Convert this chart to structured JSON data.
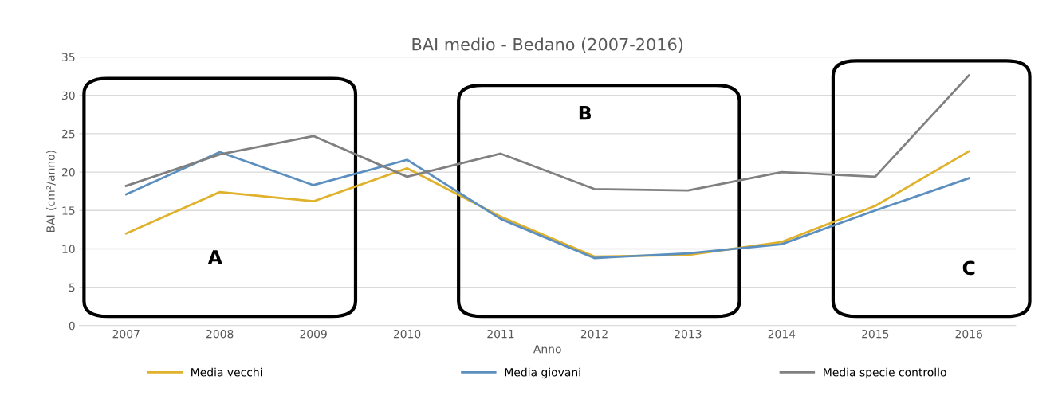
{
  "chart_data": {
    "type": "line",
    "title": "BAI medio - Bedano (2007-2016)",
    "xlabel": "Anno",
    "ylabel": "BAI (cm²/anno)",
    "categories": [
      "2007",
      "2008",
      "2009",
      "2010",
      "2011",
      "2012",
      "2013",
      "2014",
      "2015",
      "2016"
    ],
    "series": [
      {
        "name": "Media vecchi",
        "color": "#e0b12a",
        "values": [
          12.0,
          17.4,
          16.2,
          20.5,
          14.2,
          9.0,
          9.2,
          10.9,
          15.6,
          22.7
        ]
      },
      {
        "name": "Media giovani",
        "color": "#5b8fbf",
        "values": [
          17.1,
          22.6,
          18.3,
          21.6,
          13.9,
          8.8,
          9.4,
          10.6,
          15.0,
          19.2
        ]
      },
      {
        "name": "Media specie controllo",
        "color": "#808080",
        "values": [
          18.2,
          22.3,
          24.7,
          19.4,
          22.4,
          17.8,
          17.6,
          20.0,
          19.4,
          32.6
        ]
      }
    ],
    "ylim": [
      0,
      35
    ],
    "yticks": [
      0,
      5,
      10,
      15,
      20,
      25,
      30,
      35
    ],
    "grid": "y",
    "legend": "bottom",
    "marker": "none",
    "line_style": "solid",
    "annotations": [
      "A",
      "B",
      "C"
    ]
  }
}
